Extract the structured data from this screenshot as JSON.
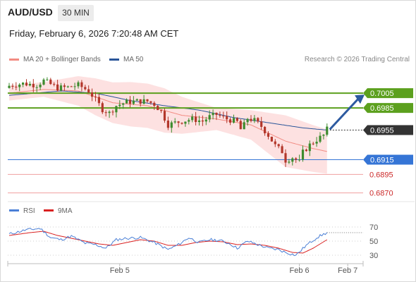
{
  "header": {
    "symbol": "AUD/USD",
    "timeframe": "30 MIN",
    "datetime": "Friday, February 6, 2026 7:20:48 AM CET"
  },
  "legend": {
    "ma20_label": "MA 20 + Bollinger Bands",
    "ma20_color": "#f28b82",
    "ma50_label": "MA 50",
    "ma50_color": "#2a5599",
    "credit": "Research © 2026 Trading Central"
  },
  "colors": {
    "up_candle": "#3d8b2e",
    "down_candle": "#b3372b",
    "bollinger_fill": "#fddcdc",
    "resistance": "#5ca01e",
    "support": "#3575d6",
    "red_level": "#f0a0a0",
    "current_price": "#333333",
    "arrow": "#2d5aa0",
    "rsi": "#4a7fd6",
    "rsi_ma": "#d92020"
  },
  "chart_data": [
    {
      "type": "candlestick",
      "title": "AUD/USD",
      "ylim": [
        0.6862,
        0.7028
      ],
      "x_labels": [
        {
          "label": "Feb 5",
          "bar": 32
        },
        {
          "label": "Feb 6",
          "bar": 84
        },
        {
          "label": "Feb 7",
          "bar": 98
        }
      ],
      "levels": [
        {
          "label": "0.7005",
          "value": 0.7005,
          "kind": "resistance"
        },
        {
          "label": "0.6985",
          "value": 0.6985,
          "kind": "resistance"
        },
        {
          "label": "0.6955",
          "value": 0.6955,
          "kind": "current"
        },
        {
          "label": "0.6915",
          "value": 0.6915,
          "kind": "support"
        },
        {
          "label": "0.6895",
          "value": 0.6895,
          "kind": "red"
        },
        {
          "label": "0.6870",
          "value": 0.687,
          "kind": "red"
        }
      ],
      "forecast_arrow": {
        "from_bar": 92,
        "from": 0.6956,
        "to_bar": 100,
        "to": 0.7003
      },
      "anchors": [
        [
          0,
          0.7015
        ],
        [
          4,
          0.7018
        ],
        [
          8,
          0.7016
        ],
        [
          10,
          0.7022
        ],
        [
          12,
          0.7017
        ],
        [
          14,
          0.7012
        ],
        [
          17,
          0.7013
        ],
        [
          20,
          0.7016
        ],
        [
          23,
          0.7008
        ],
        [
          25,
          0.6996
        ],
        [
          27,
          0.6983
        ],
        [
          29,
          0.6978
        ],
        [
          31,
          0.6988
        ],
        [
          34,
          0.6993
        ],
        [
          37,
          0.6994
        ],
        [
          40,
          0.6994
        ],
        [
          42,
          0.699
        ],
        [
          44,
          0.698
        ],
        [
          46,
          0.6962
        ],
        [
          48,
          0.6965
        ],
        [
          50,
          0.6967
        ],
        [
          53,
          0.697
        ],
        [
          56,
          0.6967
        ],
        [
          58,
          0.6973
        ],
        [
          60,
          0.6976
        ],
        [
          63,
          0.697
        ],
        [
          66,
          0.6966
        ],
        [
          67,
          0.6956
        ],
        [
          68,
          0.6962
        ],
        [
          69,
          0.6971
        ],
        [
          71,
          0.6968
        ],
        [
          73,
          0.696
        ],
        [
          75,
          0.6948
        ],
        [
          77,
          0.6934
        ],
        [
          79,
          0.6926
        ],
        [
          80,
          0.6914
        ],
        [
          82,
          0.6918
        ],
        [
          84,
          0.6912
        ],
        [
          85,
          0.6925
        ],
        [
          87,
          0.6935
        ],
        [
          89,
          0.6942
        ],
        [
          91,
          0.6948
        ],
        [
          92,
          0.6956
        ]
      ],
      "ma20_anchors": [
        [
          0,
          0.7005
        ],
        [
          10,
          0.701
        ],
        [
          20,
          0.7008
        ],
        [
          30,
          0.6992
        ],
        [
          40,
          0.6988
        ],
        [
          50,
          0.6975
        ],
        [
          60,
          0.697
        ],
        [
          70,
          0.6962
        ],
        [
          80,
          0.694
        ],
        [
          88,
          0.693
        ],
        [
          92,
          0.6926
        ]
      ],
      "bb_width_anchors": [
        [
          0,
          0.001
        ],
        [
          10,
          0.001
        ],
        [
          25,
          0.0025
        ],
        [
          35,
          0.003
        ],
        [
          45,
          0.003
        ],
        [
          60,
          0.0015
        ],
        [
          70,
          0.002
        ],
        [
          80,
          0.0035
        ],
        [
          92,
          0.003
        ]
      ],
      "ma50_anchors": [
        [
          0,
          0.7002
        ],
        [
          15,
          0.7008
        ],
        [
          25,
          0.7005
        ],
        [
          35,
          0.6995
        ],
        [
          45,
          0.6988
        ],
        [
          55,
          0.6982
        ],
        [
          65,
          0.6972
        ],
        [
          75,
          0.6965
        ],
        [
          85,
          0.6958
        ],
        [
          92,
          0.6955
        ]
      ]
    },
    {
      "type": "line",
      "title": "RSI",
      "series": [
        {
          "name": "RSI",
          "anchors": [
            [
              0,
              60
            ],
            [
              5,
              66
            ],
            [
              9,
              68
            ],
            [
              12,
              55
            ],
            [
              15,
              52
            ],
            [
              18,
              57
            ],
            [
              22,
              47
            ],
            [
              25,
              45
            ],
            [
              28,
              40
            ],
            [
              31,
              52
            ],
            [
              34,
              54
            ],
            [
              38,
              55
            ],
            [
              42,
              48
            ],
            [
              46,
              38
            ],
            [
              49,
              45
            ],
            [
              52,
              55
            ],
            [
              55,
              48
            ],
            [
              58,
              52
            ],
            [
              61,
              51
            ],
            [
              64,
              46
            ],
            [
              66,
              40
            ],
            [
              69,
              50
            ],
            [
              72,
              45
            ],
            [
              75,
              40
            ],
            [
              78,
              38
            ],
            [
              80,
              34
            ],
            [
              83,
              30
            ],
            [
              86,
              44
            ],
            [
              89,
              55
            ],
            [
              92,
              62
            ]
          ]
        },
        {
          "name": "9MA",
          "anchors": [
            [
              0,
              58
            ],
            [
              6,
              62
            ],
            [
              10,
              64
            ],
            [
              14,
              58
            ],
            [
              18,
              54
            ],
            [
              22,
              50
            ],
            [
              26,
              46
            ],
            [
              30,
              44
            ],
            [
              34,
              48
            ],
            [
              38,
              52
            ],
            [
              42,
              50
            ],
            [
              46,
              44
            ],
            [
              50,
              44
            ],
            [
              54,
              48
            ],
            [
              58,
              50
            ],
            [
              62,
              49
            ],
            [
              66,
              45
            ],
            [
              70,
              46
            ],
            [
              74,
              44
            ],
            [
              78,
              40
            ],
            [
              82,
              34
            ],
            [
              85,
              33
            ],
            [
              88,
              40
            ],
            [
              92,
              52
            ]
          ]
        }
      ],
      "ylim": [
        20,
        80
      ],
      "ticks": [
        {
          "label": "70",
          "value": 70
        },
        {
          "label": "50",
          "value": 50
        },
        {
          "label": "30",
          "value": 30
        }
      ],
      "last_value": 62
    }
  ]
}
